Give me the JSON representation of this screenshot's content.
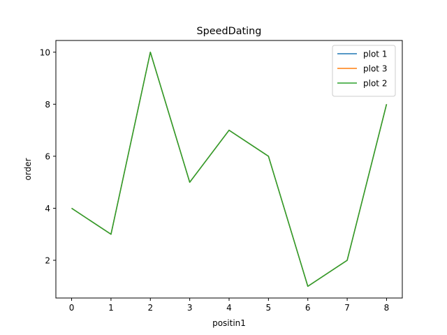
{
  "chart_data": {
    "type": "line",
    "title": "SpeedDating",
    "xlabel": "positin1",
    "ylabel": "order",
    "x": [
      0,
      1,
      2,
      3,
      4,
      5,
      6,
      7,
      8
    ],
    "xlim": [
      -0.4,
      8.4
    ],
    "ylim": [
      0.55,
      10.45
    ],
    "xticks": [
      0,
      1,
      2,
      3,
      4,
      5,
      6,
      7,
      8
    ],
    "yticks": [
      2,
      4,
      6,
      8,
      10
    ],
    "grid": false,
    "legend_position": "top-right",
    "series": [
      {
        "name": "plot 1",
        "color": "#1f77b4",
        "values": [
          4,
          3,
          10,
          5,
          7,
          6,
          1,
          2,
          8
        ]
      },
      {
        "name": "plot 3",
        "color": "#ff7f0e",
        "values": [
          4,
          3,
          10,
          5,
          7,
          6,
          1,
          2,
          8
        ]
      },
      {
        "name": "plot 2",
        "color": "#2ca02c",
        "values": [
          4,
          3,
          10,
          5,
          7,
          6,
          1,
          2,
          8
        ]
      }
    ]
  }
}
